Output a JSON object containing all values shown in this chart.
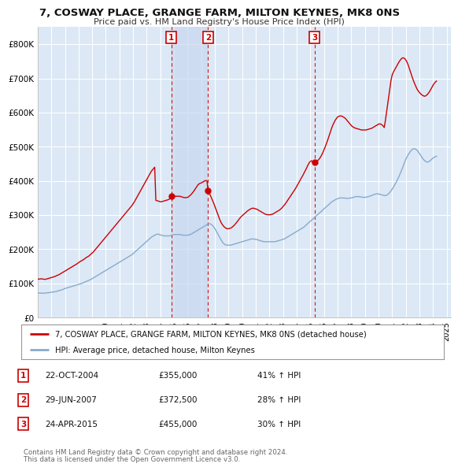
{
  "title": "7, COSWAY PLACE, GRANGE FARM, MILTON KEYNES, MK8 0NS",
  "subtitle": "Price paid vs. HM Land Registry's House Price Index (HPI)",
  "background_color": "#ffffff",
  "plot_bg_color": "#dce8f5",
  "grid_color": "#ffffff",
  "shade_color": "#c8d8ee",
  "ylim": [
    0,
    850000
  ],
  "yticks": [
    0,
    100000,
    200000,
    300000,
    400000,
    500000,
    600000,
    700000,
    800000
  ],
  "ytick_labels": [
    "£0",
    "£100K",
    "£200K",
    "£300K",
    "£400K",
    "£500K",
    "£600K",
    "£700K",
    "£800K"
  ],
  "sale_color": "#cc0000",
  "hpi_color": "#88aacc",
  "sale_label": "7, COSWAY PLACE, GRANGE FARM, MILTON KEYNES, MK8 0NS (detached house)",
  "hpi_label": "HPI: Average price, detached house, Milton Keynes",
  "transactions": [
    {
      "num": 1,
      "date": "22-OCT-2004",
      "price": 355000,
      "pct": "41%",
      "dir": "↑",
      "x_year": 2004.8
    },
    {
      "num": 2,
      "date": "29-JUN-2007",
      "price": 372500,
      "pct": "28%",
      "dir": "↑",
      "x_year": 2007.5
    },
    {
      "num": 3,
      "date": "24-APR-2015",
      "price": 455000,
      "pct": "30%",
      "dir": "↑",
      "x_year": 2015.3
    }
  ],
  "footer_line1": "Contains HM Land Registry data © Crown copyright and database right 2024.",
  "footer_line2": "This data is licensed under the Open Government Licence v3.0.",
  "hpi_data_years": [
    1995.0,
    1995.083,
    1995.167,
    1995.25,
    1995.333,
    1995.417,
    1995.5,
    1995.583,
    1995.667,
    1995.75,
    1995.833,
    1995.917,
    1996.0,
    1996.083,
    1996.167,
    1996.25,
    1996.333,
    1996.417,
    1996.5,
    1996.583,
    1996.667,
    1996.75,
    1996.833,
    1996.917,
    1997.0,
    1997.083,
    1997.167,
    1997.25,
    1997.333,
    1997.417,
    1997.5,
    1997.583,
    1997.667,
    1997.75,
    1997.833,
    1997.917,
    1998.0,
    1998.083,
    1998.167,
    1998.25,
    1998.333,
    1998.417,
    1998.5,
    1998.583,
    1998.667,
    1998.75,
    1998.833,
    1998.917,
    1999.0,
    1999.083,
    1999.167,
    1999.25,
    1999.333,
    1999.417,
    1999.5,
    1999.583,
    1999.667,
    1999.75,
    1999.833,
    1999.917,
    2000.0,
    2000.083,
    2000.167,
    2000.25,
    2000.333,
    2000.417,
    2000.5,
    2000.583,
    2000.667,
    2000.75,
    2000.833,
    2000.917,
    2001.0,
    2001.083,
    2001.167,
    2001.25,
    2001.333,
    2001.417,
    2001.5,
    2001.583,
    2001.667,
    2001.75,
    2001.833,
    2001.917,
    2002.0,
    2002.083,
    2002.167,
    2002.25,
    2002.333,
    2002.417,
    2002.5,
    2002.583,
    2002.667,
    2002.75,
    2002.833,
    2002.917,
    2003.0,
    2003.083,
    2003.167,
    2003.25,
    2003.333,
    2003.417,
    2003.5,
    2003.583,
    2003.667,
    2003.75,
    2003.833,
    2003.917,
    2004.0,
    2004.083,
    2004.167,
    2004.25,
    2004.333,
    2004.417,
    2004.5,
    2004.583,
    2004.667,
    2004.75,
    2004.833,
    2004.917,
    2005.0,
    2005.083,
    2005.167,
    2005.25,
    2005.333,
    2005.417,
    2005.5,
    2005.583,
    2005.667,
    2005.75,
    2005.833,
    2005.917,
    2006.0,
    2006.083,
    2006.167,
    2006.25,
    2006.333,
    2006.417,
    2006.5,
    2006.583,
    2006.667,
    2006.75,
    2006.833,
    2006.917,
    2007.0,
    2007.083,
    2007.167,
    2007.25,
    2007.333,
    2007.417,
    2007.5,
    2007.583,
    2007.667,
    2007.75,
    2007.833,
    2007.917,
    2008.0,
    2008.083,
    2008.167,
    2008.25,
    2008.333,
    2008.417,
    2008.5,
    2008.583,
    2008.667,
    2008.75,
    2008.833,
    2008.917,
    2009.0,
    2009.083,
    2009.167,
    2009.25,
    2009.333,
    2009.417,
    2009.5,
    2009.583,
    2009.667,
    2009.75,
    2009.833,
    2009.917,
    2010.0,
    2010.083,
    2010.167,
    2010.25,
    2010.333,
    2010.417,
    2010.5,
    2010.583,
    2010.667,
    2010.75,
    2010.833,
    2010.917,
    2011.0,
    2011.083,
    2011.167,
    2011.25,
    2011.333,
    2011.417,
    2011.5,
    2011.583,
    2011.667,
    2011.75,
    2011.833,
    2011.917,
    2012.0,
    2012.083,
    2012.167,
    2012.25,
    2012.333,
    2012.417,
    2012.5,
    2012.583,
    2012.667,
    2012.75,
    2012.833,
    2012.917,
    2013.0,
    2013.083,
    2013.167,
    2013.25,
    2013.333,
    2013.417,
    2013.5,
    2013.583,
    2013.667,
    2013.75,
    2013.833,
    2013.917,
    2014.0,
    2014.083,
    2014.167,
    2014.25,
    2014.333,
    2014.417,
    2014.5,
    2014.583,
    2014.667,
    2014.75,
    2014.833,
    2014.917,
    2015.0,
    2015.083,
    2015.167,
    2015.25,
    2015.333,
    2015.417,
    2015.5,
    2015.583,
    2015.667,
    2015.75,
    2015.833,
    2015.917,
    2016.0,
    2016.083,
    2016.167,
    2016.25,
    2016.333,
    2016.417,
    2016.5,
    2016.583,
    2016.667,
    2016.75,
    2016.833,
    2016.917,
    2017.0,
    2017.083,
    2017.167,
    2017.25,
    2017.333,
    2017.417,
    2017.5,
    2017.583,
    2017.667,
    2017.75,
    2017.833,
    2017.917,
    2018.0,
    2018.083,
    2018.167,
    2018.25,
    2018.333,
    2018.417,
    2018.5,
    2018.583,
    2018.667,
    2018.75,
    2018.833,
    2018.917,
    2019.0,
    2019.083,
    2019.167,
    2019.25,
    2019.333,
    2019.417,
    2019.5,
    2019.583,
    2019.667,
    2019.75,
    2019.833,
    2019.917,
    2020.0,
    2020.083,
    2020.167,
    2020.25,
    2020.333,
    2020.417,
    2020.5,
    2020.583,
    2020.667,
    2020.75,
    2020.833,
    2020.917,
    2021.0,
    2021.083,
    2021.167,
    2021.25,
    2021.333,
    2021.417,
    2021.5,
    2021.583,
    2021.667,
    2021.75,
    2021.833,
    2021.917,
    2022.0,
    2022.083,
    2022.167,
    2022.25,
    2022.333,
    2022.417,
    2022.5,
    2022.583,
    2022.667,
    2022.75,
    2022.833,
    2022.917,
    2023.0,
    2023.083,
    2023.167,
    2023.25,
    2023.333,
    2023.417,
    2023.5,
    2023.583,
    2023.667,
    2023.75,
    2023.833,
    2023.917,
    2024.0,
    2024.083,
    2024.167,
    2024.25
  ],
  "hpi_data_values": [
    72000,
    71800,
    71500,
    71200,
    71000,
    71200,
    71500,
    71700,
    72000,
    72500,
    73000,
    73500,
    74000,
    74500,
    75000,
    75500,
    76000,
    77000,
    78000,
    79000,
    80000,
    81000,
    82000,
    83500,
    85000,
    86000,
    87000,
    88000,
    89000,
    90000,
    91000,
    92000,
    93000,
    94000,
    95000,
    96000,
    97000,
    98000,
    99000,
    100000,
    101500,
    103000,
    104500,
    106000,
    107500,
    109000,
    110500,
    112000,
    114000,
    116000,
    118000,
    120000,
    122000,
    124000,
    126000,
    128000,
    130000,
    132000,
    134000,
    136000,
    138000,
    140000,
    142000,
    144000,
    146000,
    148000,
    150000,
    152000,
    154000,
    156000,
    158000,
    160000,
    162000,
    164000,
    166000,
    168000,
    170000,
    172000,
    174000,
    176000,
    178000,
    180000,
    182000,
    184000,
    187000,
    190000,
    193000,
    196000,
    199000,
    202000,
    205000,
    208000,
    211000,
    214000,
    217000,
    220000,
    223000,
    226000,
    229000,
    232000,
    235000,
    237000,
    239000,
    241000,
    243000,
    244000,
    244000,
    243000,
    242000,
    241000,
    240000,
    239000,
    239000,
    239000,
    239000,
    239000,
    239000,
    240000,
    241000,
    242000,
    243000,
    243000,
    243000,
    243000,
    243000,
    243000,
    242000,
    242000,
    241000,
    241000,
    241000,
    241000,
    241000,
    242000,
    243000,
    244000,
    246000,
    248000,
    250000,
    252000,
    254000,
    256000,
    258000,
    260000,
    262000,
    264000,
    266000,
    268000,
    270000,
    272000,
    274000,
    275000,
    274000,
    272000,
    269000,
    265000,
    260000,
    254000,
    248000,
    242000,
    236000,
    230000,
    224000,
    219000,
    216000,
    213000,
    212000,
    212000,
    212000,
    212000,
    212000,
    213000,
    214000,
    215000,
    216000,
    217000,
    218000,
    219000,
    220000,
    221000,
    222000,
    223000,
    224000,
    225000,
    226000,
    227000,
    228000,
    229000,
    230000,
    230000,
    230000,
    229000,
    229000,
    228000,
    227000,
    226000,
    225000,
    224000,
    223000,
    222000,
    222000,
    222000,
    222000,
    222000,
    222000,
    222000,
    222000,
    222000,
    222000,
    222000,
    223000,
    224000,
    225000,
    226000,
    227000,
    228000,
    229000,
    230000,
    232000,
    234000,
    236000,
    238000,
    240000,
    242000,
    244000,
    246000,
    248000,
    250000,
    252000,
    254000,
    256000,
    258000,
    260000,
    262000,
    264000,
    267000,
    270000,
    273000,
    276000,
    279000,
    282000,
    285000,
    288000,
    291000,
    294000,
    297000,
    300000,
    303000,
    306000,
    309000,
    312000,
    315000,
    318000,
    321000,
    324000,
    327000,
    330000,
    333000,
    336000,
    339000,
    341000,
    343000,
    345000,
    347000,
    348000,
    349000,
    350000,
    350000,
    350000,
    350000,
    350000,
    349000,
    349000,
    349000,
    349000,
    350000,
    350000,
    351000,
    352000,
    353000,
    354000,
    354000,
    354000,
    354000,
    353000,
    353000,
    352000,
    352000,
    352000,
    352000,
    353000,
    354000,
    355000,
    356000,
    357000,
    359000,
    360000,
    361000,
    362000,
    362000,
    362000,
    361000,
    360000,
    359000,
    358000,
    357000,
    357000,
    358000,
    360000,
    363000,
    367000,
    371000,
    376000,
    381000,
    387000,
    393000,
    399000,
    406000,
    413000,
    421000,
    429000,
    437000,
    446000,
    455000,
    463000,
    470000,
    476000,
    481000,
    486000,
    490000,
    493000,
    494000,
    494000,
    492000,
    489000,
    485000,
    480000,
    475000,
    470000,
    465000,
    461000,
    458000,
    456000,
    455000,
    456000,
    458000,
    461000,
    464000,
    467000,
    469000,
    471000,
    472000
  ],
  "sale_data_years": [
    1995.0,
    1995.083,
    1995.167,
    1995.25,
    1995.333,
    1995.417,
    1995.5,
    1995.583,
    1995.667,
    1995.75,
    1995.833,
    1995.917,
    1996.0,
    1996.083,
    1996.167,
    1996.25,
    1996.333,
    1996.417,
    1996.5,
    1996.583,
    1996.667,
    1996.75,
    1996.833,
    1996.917,
    1997.0,
    1997.083,
    1997.167,
    1997.25,
    1997.333,
    1997.417,
    1997.5,
    1997.583,
    1997.667,
    1997.75,
    1997.833,
    1997.917,
    1998.0,
    1998.083,
    1998.167,
    1998.25,
    1998.333,
    1998.417,
    1998.5,
    1998.583,
    1998.667,
    1998.75,
    1998.833,
    1998.917,
    1999.0,
    1999.083,
    1999.167,
    1999.25,
    1999.333,
    1999.417,
    1999.5,
    1999.583,
    1999.667,
    1999.75,
    1999.833,
    1999.917,
    2000.0,
    2000.083,
    2000.167,
    2000.25,
    2000.333,
    2000.417,
    2000.5,
    2000.583,
    2000.667,
    2000.75,
    2000.833,
    2000.917,
    2001.0,
    2001.083,
    2001.167,
    2001.25,
    2001.333,
    2001.417,
    2001.5,
    2001.583,
    2001.667,
    2001.75,
    2001.833,
    2001.917,
    2002.0,
    2002.083,
    2002.167,
    2002.25,
    2002.333,
    2002.417,
    2002.5,
    2002.583,
    2002.667,
    2002.75,
    2002.833,
    2002.917,
    2003.0,
    2003.083,
    2003.167,
    2003.25,
    2003.333,
    2003.417,
    2003.5,
    2003.583,
    2003.667,
    2003.75,
    2003.833,
    2003.917,
    2004.0,
    2004.083,
    2004.167,
    2004.25,
    2004.333,
    2004.417,
    2004.5,
    2004.583,
    2004.667,
    2004.75,
    2004.833,
    2004.917,
    2005.0,
    2005.083,
    2005.167,
    2005.25,
    2005.333,
    2005.417,
    2005.5,
    2005.583,
    2005.667,
    2005.75,
    2005.833,
    2005.917,
    2006.0,
    2006.083,
    2006.167,
    2006.25,
    2006.333,
    2006.417,
    2006.5,
    2006.583,
    2006.667,
    2006.75,
    2006.833,
    2006.917,
    2007.0,
    2007.083,
    2007.167,
    2007.25,
    2007.333,
    2007.417,
    2007.5,
    2007.583,
    2007.667,
    2007.75,
    2007.833,
    2007.917,
    2008.0,
    2008.083,
    2008.167,
    2008.25,
    2008.333,
    2008.417,
    2008.5,
    2008.583,
    2008.667,
    2008.75,
    2008.833,
    2008.917,
    2009.0,
    2009.083,
    2009.167,
    2009.25,
    2009.333,
    2009.417,
    2009.5,
    2009.583,
    2009.667,
    2009.75,
    2009.833,
    2009.917,
    2010.0,
    2010.083,
    2010.167,
    2010.25,
    2010.333,
    2010.417,
    2010.5,
    2010.583,
    2010.667,
    2010.75,
    2010.833,
    2010.917,
    2011.0,
    2011.083,
    2011.167,
    2011.25,
    2011.333,
    2011.417,
    2011.5,
    2011.583,
    2011.667,
    2011.75,
    2011.833,
    2011.917,
    2012.0,
    2012.083,
    2012.167,
    2012.25,
    2012.333,
    2012.417,
    2012.5,
    2012.583,
    2012.667,
    2012.75,
    2012.833,
    2012.917,
    2013.0,
    2013.083,
    2013.167,
    2013.25,
    2013.333,
    2013.417,
    2013.5,
    2013.583,
    2013.667,
    2013.75,
    2013.833,
    2013.917,
    2014.0,
    2014.083,
    2014.167,
    2014.25,
    2014.333,
    2014.417,
    2014.5,
    2014.583,
    2014.667,
    2014.75,
    2014.833,
    2014.917,
    2015.0,
    2015.083,
    2015.167,
    2015.25,
    2015.333,
    2015.417,
    2015.5,
    2015.583,
    2015.667,
    2015.75,
    2015.833,
    2015.917,
    2016.0,
    2016.083,
    2016.167,
    2016.25,
    2016.333,
    2016.417,
    2016.5,
    2016.583,
    2016.667,
    2016.75,
    2016.833,
    2016.917,
    2017.0,
    2017.083,
    2017.167,
    2017.25,
    2017.333,
    2017.417,
    2017.5,
    2017.583,
    2017.667,
    2017.75,
    2017.833,
    2017.917,
    2018.0,
    2018.083,
    2018.167,
    2018.25,
    2018.333,
    2018.417,
    2018.5,
    2018.583,
    2018.667,
    2018.75,
    2018.833,
    2018.917,
    2019.0,
    2019.083,
    2019.167,
    2019.25,
    2019.333,
    2019.417,
    2019.5,
    2019.583,
    2019.667,
    2019.75,
    2019.833,
    2019.917,
    2020.0,
    2020.083,
    2020.167,
    2020.25,
    2020.333,
    2020.417,
    2020.5,
    2020.583,
    2020.667,
    2020.75,
    2020.833,
    2020.917,
    2021.0,
    2021.083,
    2021.167,
    2021.25,
    2021.333,
    2021.417,
    2021.5,
    2021.583,
    2021.667,
    2021.75,
    2021.833,
    2021.917,
    2022.0,
    2022.083,
    2022.167,
    2022.25,
    2022.333,
    2022.417,
    2022.5,
    2022.583,
    2022.667,
    2022.75,
    2022.833,
    2022.917,
    2023.0,
    2023.083,
    2023.167,
    2023.25,
    2023.333,
    2023.417,
    2023.5,
    2023.583,
    2023.667,
    2023.75,
    2023.833,
    2023.917,
    2024.0,
    2024.083,
    2024.167,
    2024.25
  ],
  "sale_data_values": [
    112000,
    112500,
    113000,
    113500,
    113000,
    112500,
    112000,
    112000,
    113000,
    114000,
    115000,
    116000,
    117000,
    118000,
    119000,
    120000,
    121500,
    123000,
    124500,
    126000,
    128000,
    130000,
    132000,
    134000,
    136000,
    138000,
    140000,
    142000,
    144000,
    146000,
    148000,
    150000,
    152000,
    154000,
    156000,
    158000,
    161000,
    163000,
    165000,
    167000,
    169000,
    171000,
    174000,
    176000,
    178000,
    180000,
    183000,
    186000,
    189000,
    192000,
    196000,
    200000,
    204000,
    208000,
    212000,
    216000,
    220000,
    224000,
    228000,
    232000,
    236000,
    240000,
    244000,
    248000,
    252000,
    256000,
    260000,
    264000,
    268000,
    272000,
    276000,
    280000,
    284000,
    288000,
    292000,
    296000,
    300000,
    304000,
    308000,
    312000,
    316000,
    320000,
    324000,
    328000,
    333000,
    338000,
    344000,
    350000,
    356000,
    362000,
    368000,
    374000,
    380000,
    386000,
    392000,
    398000,
    404000,
    410000,
    416000,
    422000,
    428000,
    432000,
    436000,
    440000,
    343000,
    342000,
    341000,
    340000,
    339000,
    339000,
    340000,
    341000,
    342000,
    343000,
    344000,
    345000,
    347000,
    349000,
    351000,
    353000,
    354000,
    355000,
    355000,
    355000,
    355000,
    355000,
    354000,
    353000,
    352000,
    351000,
    351000,
    351000,
    352000,
    354000,
    357000,
    360000,
    364000,
    368000,
    373000,
    378000,
    383000,
    388000,
    391000,
    393000,
    394000,
    396000,
    398000,
    400000,
    401000,
    400000,
    372500,
    365000,
    358000,
    350000,
    342000,
    334000,
    325000,
    316000,
    307000,
    298000,
    289000,
    281000,
    275000,
    270000,
    266000,
    263000,
    261000,
    260000,
    260000,
    261000,
    262000,
    264000,
    267000,
    270000,
    274000,
    278000,
    282000,
    287000,
    291000,
    295000,
    298000,
    301000,
    304000,
    307000,
    310000,
    313000,
    315000,
    317000,
    319000,
    320000,
    320000,
    319000,
    318000,
    317000,
    315000,
    313000,
    311000,
    309000,
    307000,
    305000,
    303000,
    302000,
    301000,
    301000,
    301000,
    301000,
    302000,
    303000,
    305000,
    307000,
    309000,
    311000,
    313000,
    315000,
    318000,
    321000,
    325000,
    329000,
    333000,
    338000,
    343000,
    348000,
    353000,
    358000,
    363000,
    368000,
    373000,
    378000,
    384000,
    390000,
    396000,
    402000,
    408000,
    414000,
    420000,
    427000,
    433000,
    440000,
    447000,
    453000,
    457000,
    459000,
    455000,
    455000,
    455000,
    456000,
    458000,
    461000,
    465000,
    470000,
    476000,
    483000,
    491000,
    499000,
    508000,
    517000,
    527000,
    537000,
    547000,
    557000,
    565000,
    572000,
    578000,
    583000,
    587000,
    589000,
    590000,
    590000,
    589000,
    587000,
    585000,
    582000,
    578000,
    574000,
    570000,
    566000,
    562000,
    559000,
    557000,
    555000,
    554000,
    553000,
    552000,
    551000,
    550000,
    549000,
    549000,
    549000,
    549000,
    549000,
    550000,
    551000,
    552000,
    553000,
    554000,
    556000,
    558000,
    560000,
    562000,
    564000,
    566000,
    567000,
    566000,
    564000,
    561000,
    556000,
    576000,
    600000,
    624000,
    648000,
    672000,
    695000,
    710000,
    718000,
    724000,
    730000,
    736000,
    742000,
    748000,
    753000,
    757000,
    760000,
    760000,
    758000,
    754000,
    748000,
    740000,
    730000,
    720000,
    710000,
    700000,
    691000,
    683000,
    675000,
    668000,
    663000,
    659000,
    655000,
    652000,
    650000,
    648000,
    648000,
    650000,
    653000,
    657000,
    662000,
    668000,
    674000,
    680000,
    685000,
    689000,
    692000
  ],
  "xtick_years": [
    1995,
    1996,
    1997,
    1998,
    1999,
    2000,
    2001,
    2002,
    2003,
    2004,
    2005,
    2006,
    2007,
    2008,
    2009,
    2010,
    2011,
    2012,
    2013,
    2014,
    2015,
    2016,
    2017,
    2018,
    2019,
    2020,
    2021,
    2022,
    2023,
    2024,
    2025
  ]
}
